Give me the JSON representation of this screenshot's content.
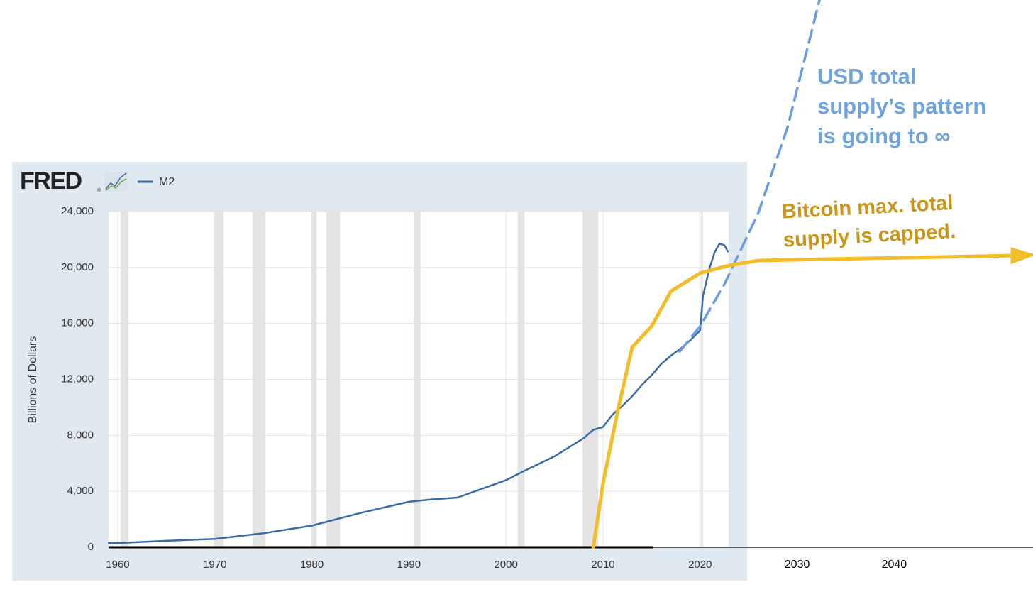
{
  "chart_data": {
    "type": "line",
    "logo": "FRED",
    "logo_mark": "®",
    "y_label": "Billions of Dollars",
    "xlim": [
      1959,
      2053
    ],
    "xticks": [
      1960,
      1970,
      1980,
      1990,
      2000,
      2010,
      2020,
      2030,
      2040
    ],
    "ylim": [
      0,
      24000
    ],
    "yticks": [
      0,
      {
        "value": 4000,
        "label": "4,000"
      },
      {
        "value": 8000,
        "label": "8,000"
      },
      {
        "value": 12000,
        "label": "12,000"
      },
      {
        "value": 16000,
        "label": "16,000"
      },
      {
        "value": 20000,
        "label": "20,000"
      },
      {
        "value": 24000,
        "label": "24,000"
      }
    ],
    "grid": true,
    "recessions": [
      [
        1960.3,
        1961.1
      ],
      [
        1969.9,
        1970.9
      ],
      [
        1973.9,
        1975.2
      ],
      [
        1980.0,
        1980.5
      ],
      [
        1981.5,
        1982.9
      ],
      [
        1990.5,
        1991.2
      ],
      [
        2001.2,
        2001.9
      ],
      [
        2007.9,
        2009.5
      ],
      [
        2020.1,
        2020.3
      ]
    ],
    "series": [
      {
        "name": "M2",
        "color": "#3b6aa8",
        "x": [
          1959,
          1960,
          1965,
          1970,
          1975,
          1980,
          1985,
          1990,
          1992,
          1995,
          1998,
          2000,
          2002,
          2005,
          2008,
          2009,
          2010,
          2011,
          2012,
          2013,
          2014,
          2015,
          2016,
          2017,
          2018,
          2019,
          2020,
          2020.3,
          2021,
          2021.5,
          2022,
          2022.5,
          2022.9
        ],
        "values": [
          290,
          300,
          460,
          600,
          1000,
          1550,
          2450,
          3250,
          3400,
          3550,
          4300,
          4800,
          5500,
          6500,
          7800,
          8400,
          8600,
          9500,
          10100,
          10800,
          11600,
          12300,
          13100,
          13700,
          14200,
          14800,
          15500,
          18000,
          20000,
          21100,
          21700,
          21600,
          21100
        ]
      }
    ],
    "annotations": [
      {
        "lines": [
          "USD total",
          "supply’s pattern",
          "is going to ∞"
        ],
        "color": "#6fa3dc",
        "curve": {
          "color": "#6b9be0",
          "dashed": true,
          "x": [
            2017.9,
            2020,
            2022.5,
            2026,
            2029,
            2032.3
          ],
          "values": [
            14000,
            15800,
            18800,
            23900,
            30000,
            39100
          ]
        }
      },
      {
        "lines": [
          "Bitcoin max. total",
          "supply is capped."
        ],
        "color": "#c9951a",
        "curve": {
          "color": "#f2bd2a",
          "dashed": false,
          "x": [
            2009,
            2010,
            2011.5,
            2013,
            2015,
            2017,
            2020,
            2023,
            2026,
            2052
          ],
          "values": [
            0,
            4600,
            9700,
            14300,
            15800,
            18300,
            19600,
            20150,
            20500,
            20850
          ]
        }
      }
    ]
  }
}
